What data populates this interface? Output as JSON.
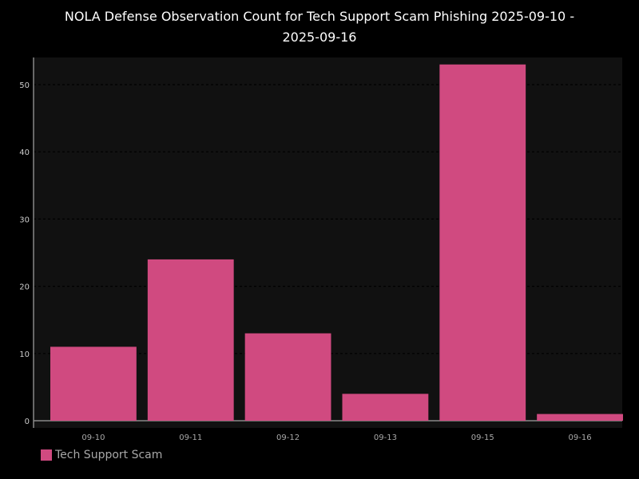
{
  "chart_data": {
    "type": "bar",
    "title_lines": [
      "NOLA Defense Observation Count for Tech Support Scam Phishing 2025-09-10 -",
      "2025-09-16"
    ],
    "categories": [
      "09-10",
      "09-11",
      "09-12",
      "09-13",
      "09-15",
      "09-16"
    ],
    "series": [
      {
        "name": "Tech Support Scam",
        "values": [
          11,
          24,
          13,
          4,
          53,
          1
        ]
      }
    ],
    "xlabel": "",
    "ylabel": "",
    "ylim": [
      0,
      54
    ],
    "yticks": [
      0,
      10,
      20,
      30,
      40,
      50
    ],
    "grid": true,
    "legend": "bottom-left",
    "colors": {
      "bar": "#d04a80",
      "plot_bg": "#111111",
      "page_bg": "#000000",
      "grid": "#3a3a3a"
    }
  }
}
